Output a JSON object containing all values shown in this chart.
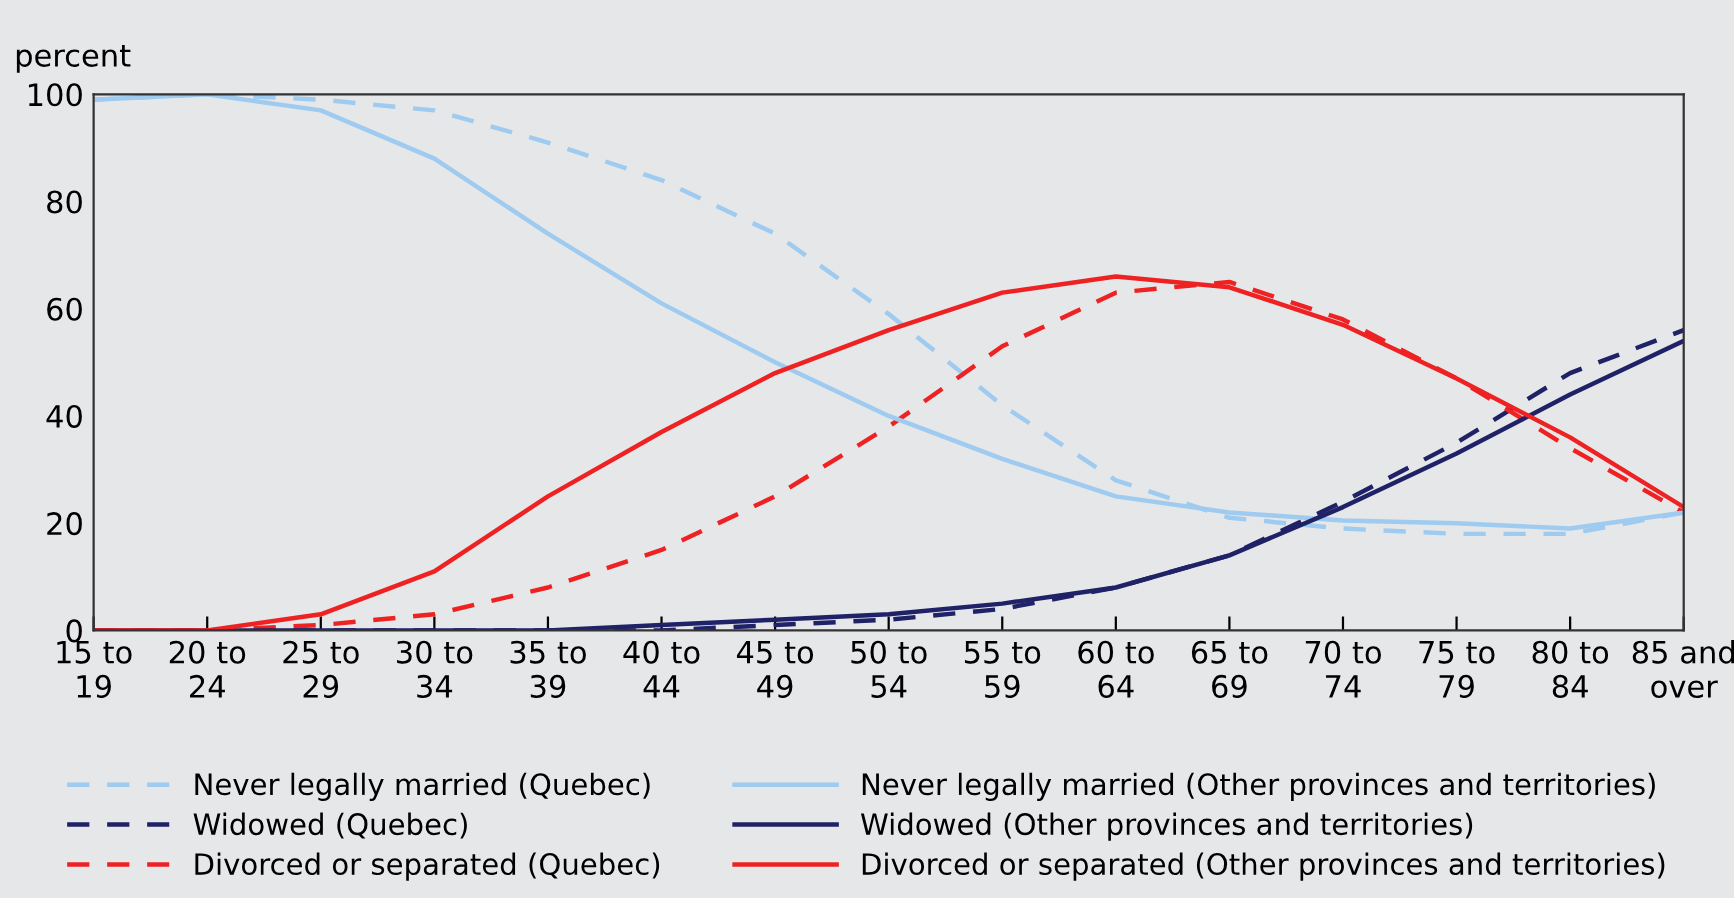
{
  "chart_data": {
    "type": "line",
    "ylabel": "percent",
    "categories": [
      "15 to 19",
      "20 to 24",
      "25 to 29",
      "30 to 34",
      "35 to 39",
      "40 to 44",
      "45 to 49",
      "50 to 54",
      "55 to 59",
      "60 to 64",
      "65 to 69",
      "70 to 74",
      "75 to 79",
      "80 to 84",
      "85 and over"
    ],
    "series": [
      {
        "name": "Never legally married (Quebec)",
        "color": "#9ecbef",
        "line_style": "dashed",
        "values": [
          99,
          100,
          99,
          97,
          91,
          84,
          74,
          59,
          42,
          28,
          21,
          19,
          18,
          18,
          22
        ]
      },
      {
        "name": "Widowed (Quebec)",
        "color": "#1f2266",
        "line_style": "dashed",
        "values": [
          0,
          0,
          0,
          0,
          0,
          0,
          1,
          2,
          4,
          8,
          14,
          24,
          35,
          48,
          56
        ]
      },
      {
        "name": "Divorced or separated (Quebec)",
        "color": "#ee2222",
        "line_style": "dashed",
        "values": [
          0,
          0,
          1,
          3,
          8,
          15,
          25,
          38,
          53,
          63,
          65,
          58,
          47,
          34,
          22
        ]
      },
      {
        "name": "Never legally married (Other provinces and territories)",
        "color": "#9ecbef",
        "line_style": "solid",
        "values": [
          99,
          100,
          97,
          88,
          74,
          61,
          50,
          40,
          32,
          25,
          22,
          20.5,
          20,
          19,
          22
        ]
      },
      {
        "name": "Widowed (Other provinces and territories)",
        "color": "#1f2266",
        "line_style": "solid",
        "values": [
          0,
          0,
          0,
          0,
          0,
          1,
          2,
          3,
          5,
          8,
          14,
          23,
          33,
          44,
          54
        ]
      },
      {
        "name": "Divorced or separated (Other provinces and territories)",
        "color": "#ee2222",
        "line_style": "solid",
        "values": [
          0,
          0,
          3,
          11,
          25,
          37,
          48,
          56,
          63,
          66,
          64,
          57,
          47,
          36,
          23
        ]
      }
    ],
    "ylim": [
      0,
      100
    ],
    "yticks": [
      0,
      20,
      40,
      60,
      80,
      100
    ],
    "grid": false,
    "legend": "bottom",
    "marker": "none"
  }
}
